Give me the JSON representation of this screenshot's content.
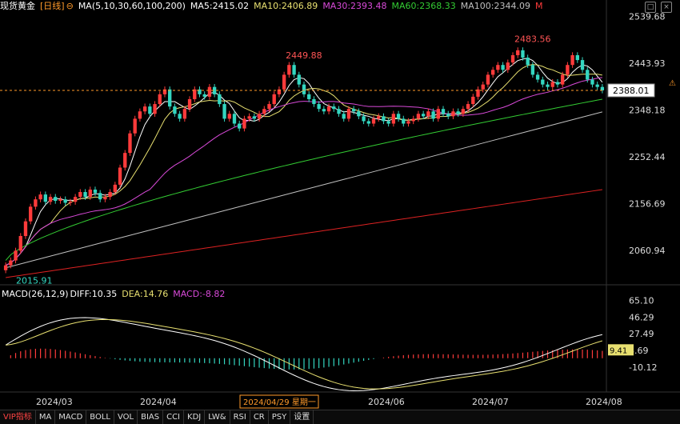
{
  "header": {
    "title": "现货黄金",
    "period": "[日线]",
    "ma_params": "MA(5,10,30,60,100,200)",
    "ma5": "MA5:2415.02",
    "ma10": "MA10:2406.89",
    "ma30": "MA30:2393.48",
    "ma60": "MA60:2368.33",
    "ma100": "MA100:2344.09",
    "ma_more": "M"
  },
  "macd_header": {
    "params": "MACD(26,12,9)",
    "diff": "DIFF:10.35",
    "dea": "DEA:14.76",
    "macd": "MACD:-8.82"
  },
  "price_axis": [
    "2539.68",
    "2443.93",
    "2348.18",
    "2252.44",
    "2156.69",
    "2060.94"
  ],
  "current_price_label": "2388.01",
  "macd_axis": [
    "65.10",
    "46.29",
    "27.49",
    "8.69",
    "-10.12"
  ],
  "macd_current_label": "9.41",
  "x_axis": [
    "2024/03",
    "2024/04",
    "2024/06",
    "2024/07",
    "2024/08"
  ],
  "cursor_date": "2024/04/29 星期一",
  "annotations": {
    "high1": "2449.88",
    "high2": "2483.56",
    "low": "2015.91"
  },
  "toolbar": [
    "VIP指标",
    "MA",
    "MACD",
    "BOLL",
    "VOL",
    "BIAS",
    "CCI",
    "KDJ",
    "LW&",
    "RSI",
    "CR",
    "PSY",
    "设置"
  ],
  "colors": {
    "up": "#ff3b3b",
    "down": "#33d6c0",
    "ma5": "#ffffff",
    "ma10": "#e8e070",
    "ma30": "#d94ad9",
    "ma60": "#33cc33",
    "ma100": "#bfbfbf",
    "ma200": "#dd2222",
    "dea": "#e8e070",
    "diff": "#ffffff"
  },
  "chart_data": [
    {
      "type": "candlestick",
      "title": "现货黄金 日线",
      "y_range": [
        2000,
        2550
      ],
      "ticks": [
        2539.68,
        2443.93,
        2348.18,
        2252.44,
        2156.69,
        2060.94
      ],
      "closes": [
        2030,
        2040,
        2060,
        2090,
        2120,
        2150,
        2165,
        2175,
        2160,
        2170,
        2162,
        2165,
        2158,
        2160,
        2170,
        2180,
        2170,
        2185,
        2178,
        2165,
        2170,
        2180,
        2195,
        2230,
        2260,
        2300,
        2330,
        2345,
        2355,
        2340,
        2360,
        2380,
        2390,
        2355,
        2340,
        2330,
        2350,
        2370,
        2390,
        2380,
        2375,
        2395,
        2380,
        2360,
        2330,
        2340,
        2320,
        2310,
        2330,
        2335,
        2330,
        2340,
        2350,
        2360,
        2380,
        2390,
        2420,
        2440,
        2420,
        2400,
        2380,
        2370,
        2360,
        2350,
        2345,
        2355,
        2350,
        2340,
        2330,
        2350,
        2345,
        2335,
        2325,
        2320,
        2330,
        2335,
        2325,
        2320,
        2340,
        2330,
        2320,
        2325,
        2330,
        2340,
        2335,
        2345,
        2330,
        2350,
        2340,
        2335,
        2345,
        2340,
        2350,
        2360,
        2375,
        2390,
        2400,
        2420,
        2430,
        2440,
        2430,
        2445,
        2460,
        2470,
        2455,
        2440,
        2420,
        2410,
        2400,
        2395,
        2405,
        2400,
        2420,
        2440,
        2460,
        2450,
        2430,
        2410,
        2400,
        2395,
        2388
      ],
      "highs": {
        "2449.88": 56,
        "2483.56": 102
      },
      "low_point": {
        "value": 2015.91,
        "index": 0
      },
      "ma_levels": {
        "MA5": 2415.02,
        "MA10": 2406.89,
        "MA30": 2393.48,
        "MA60": 2368.33,
        "MA100": 2344.09
      },
      "current": 2388.01
    },
    {
      "type": "macd",
      "title": "MACD(26,12,9)",
      "y_range": [
        -20,
        70
      ],
      "ticks": [
        65.1,
        46.29,
        27.49,
        8.69,
        -10.12
      ],
      "diff_last": 10.35,
      "dea_last": 14.76,
      "macd_last": -8.82
    }
  ]
}
